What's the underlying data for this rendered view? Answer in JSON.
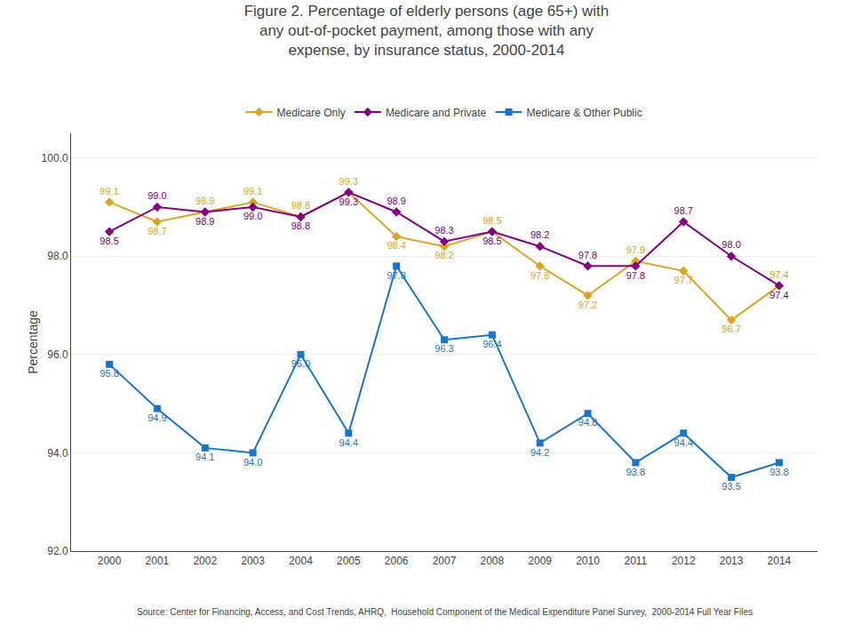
{
  "chart_data": {
    "type": "line",
    "title": "Figure 2. Percentage of elderly persons (age 65+) with\nany out-of-pocket payment, among those with any\nexpense, by insurance status, 2000-2014",
    "ylabel": "Percentage",
    "annotations": [
      "Source: Center for Financing, Access, and Cost Trends, AHRQ,  Household Component of the Medical Expenditure Panel Survey,  2000-2014 Full Year Files"
    ],
    "x": [
      2000,
      2001,
      2002,
      2003,
      2004,
      2005,
      2006,
      2007,
      2008,
      2009,
      2010,
      2011,
      2012,
      2013,
      2014
    ],
    "xlim": [
      1999.2,
      2014.8
    ],
    "xticks": [
      2000,
      2001,
      2002,
      2003,
      2004,
      2005,
      2006,
      2007,
      2008,
      2009,
      2010,
      2011,
      2012,
      2013,
      2014
    ],
    "ylim": [
      92.0,
      100.5
    ],
    "yticks": [
      {
        "value": 92.0,
        "label": "92.0"
      },
      {
        "value": 94.0,
        "label": "94.0"
      },
      {
        "value": 96.0,
        "label": "96.0"
      },
      {
        "value": 98.0,
        "label": "98.0"
      },
      {
        "value": 100.0,
        "label": "100.0"
      }
    ],
    "grid": true,
    "legend": "upper center",
    "data_labels": true,
    "series": [
      {
        "name": "Medicare Only",
        "color": "#DAA520",
        "marker": "diamond",
        "values": [
          99.1,
          98.7,
          98.9,
          99.1,
          98.8,
          99.3,
          98.4,
          98.2,
          98.5,
          97.8,
          97.2,
          97.9,
          97.7,
          96.7,
          97.4
        ],
        "value_labels": [
          "99.1",
          "98.7",
          "98.9",
          "99.1",
          "98.8",
          "99.3",
          "98.4",
          "98.2",
          "98.5",
          "97.8",
          "97.2",
          "97.9",
          "97.7",
          "96.7",
          "97.4"
        ]
      },
      {
        "name": "Medicare and Private",
        "color": "#800080",
        "marker": "diamond",
        "values": [
          98.5,
          99.0,
          98.9,
          99.0,
          98.8,
          99.3,
          98.9,
          98.3,
          98.5,
          98.2,
          97.8,
          97.8,
          98.7,
          98.0,
          97.4
        ],
        "value_labels": [
          "98.5",
          "99.0",
          "98.9",
          "99.0",
          "98.8",
          "99.3",
          "98.9",
          "98.3",
          "98.5",
          "98.2",
          "97.8",
          "97.8",
          "98.7",
          "98.0",
          "97.4"
        ]
      },
      {
        "name": "Medicare & Other Public",
        "color": "#1874CD",
        "marker": "square",
        "values": [
          95.8,
          94.9,
          94.1,
          94.0,
          96.0,
          94.4,
          97.8,
          96.3,
          96.4,
          94.2,
          94.8,
          93.8,
          94.4,
          93.5,
          93.8
        ],
        "value_labels": [
          "95.8",
          "94.9",
          "94.1",
          "94.0",
          "96.0",
          "94.4",
          "97.8",
          "96.3",
          "96.4",
          "94.2",
          "94.8",
          "93.8",
          "94.4",
          "93.5",
          "93.8"
        ]
      }
    ]
  }
}
